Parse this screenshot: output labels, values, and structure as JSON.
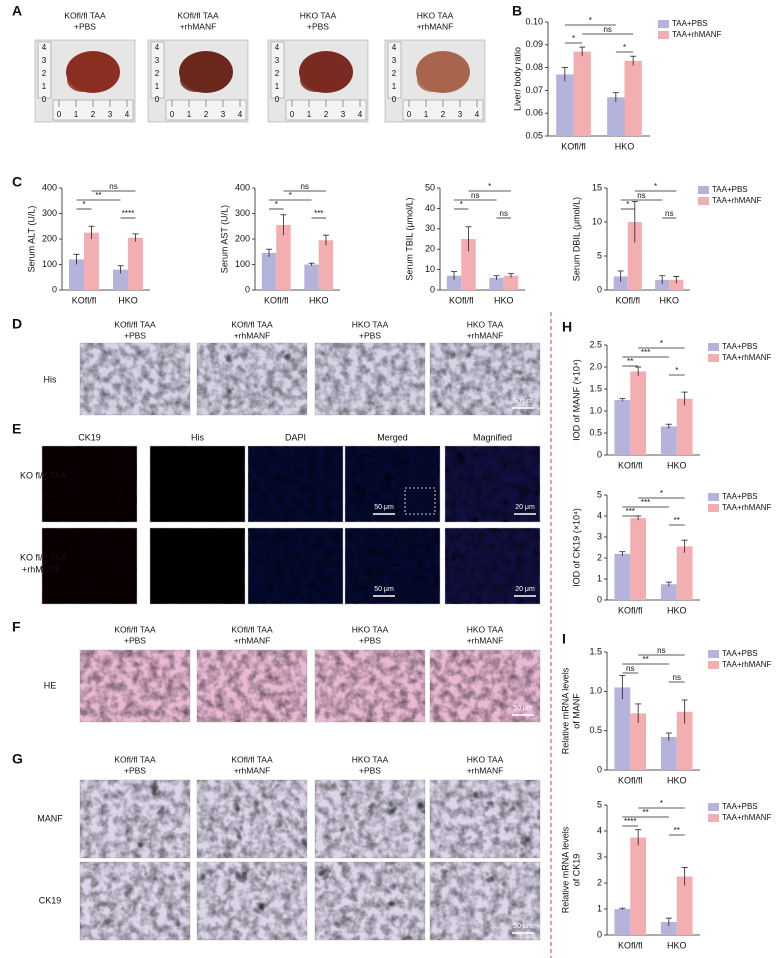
{
  "panel_letters": [
    "A",
    "B",
    "C",
    "D",
    "E",
    "F",
    "G",
    "H",
    "I"
  ],
  "group_headers": [
    {
      "line1": "KOfl/fl TAA",
      "line2": "+PBS"
    },
    {
      "line1": "KOfl/fl TAA",
      "line2": "+rhMANF"
    },
    {
      "line1": "HKO TAA",
      "line2": "+PBS"
    },
    {
      "line1": "HKO TAA",
      "line2": "+rhMANF"
    }
  ],
  "ruler_labels": [
    "0",
    "1",
    "2",
    "3",
    "4"
  ],
  "panel_d": {
    "row_label": "His",
    "scale_bar": "50 μm"
  },
  "panel_e": {
    "columns": [
      "CK19",
      "His",
      "DAPI",
      "Merged",
      "Magnified"
    ],
    "rows": [
      {
        "line1": "KO fl/fl TAA",
        "line2": ""
      },
      {
        "line1": "KO fl/fl TAA",
        "line2": "+rhMANF"
      }
    ],
    "scale_bars": [
      "50 μm",
      "20 μm"
    ]
  },
  "panel_f": {
    "row_label": "HE",
    "scale_bar": "50 μm"
  },
  "panel_g": {
    "rows": [
      "MANF",
      "CK19"
    ],
    "scale_bar": "50 μm"
  },
  "chart_data": [
    {
      "type": "bar",
      "y_label": [
        "Liver/ body ratio"
      ],
      "categories": [
        "KOfl/fl",
        "HKO"
      ],
      "series": [
        {
          "name": "TAA+PBS",
          "color": "#b4b3dc",
          "values": [
            0.077,
            0.067
          ],
          "errors": [
            0.003,
            0.002
          ]
        },
        {
          "name": "TAA+rhMANF",
          "color": "#f3aeb1",
          "values": [
            0.087,
            0.083
          ],
          "errors": [
            0.002,
            0.002
          ]
        }
      ],
      "ylim": [
        0.05,
        0.1
      ],
      "yticks": [
        0.05,
        0.06,
        0.07,
        0.08,
        0.09,
        {
          "value": 0.1,
          "label": "0.10"
        }
      ],
      "brackets": [
        {
          "label": "*",
          "from": 0,
          "to": 2
        },
        {
          "label": "ns",
          "from": 1,
          "to": 3
        },
        {
          "label": "*",
          "from": 0,
          "to": 1
        },
        {
          "label": "*",
          "from": 2,
          "to": 3
        }
      ],
      "legend": "right"
    },
    {
      "type": "bar",
      "y_label": [
        "Serum ALT (U/L)"
      ],
      "categories": [
        "KOfl/fl",
        "HKO"
      ],
      "series": [
        {
          "name": "TAA+PBS",
          "color": "#b4b3dc",
          "values": [
            120,
            80
          ],
          "errors": [
            20,
            15
          ]
        },
        {
          "name": "TAA+rhMANF",
          "color": "#f3aeb1",
          "values": [
            225,
            205
          ],
          "errors": [
            25,
            15
          ]
        }
      ],
      "ylim": [
        0,
        400
      ],
      "yticks": [
        0,
        100,
        200,
        300,
        400
      ],
      "brackets": [
        {
          "label": "ns",
          "from": 1,
          "to": 3
        },
        {
          "label": "**",
          "from": 0,
          "to": 2
        },
        {
          "label": "*",
          "from": 0,
          "to": 1
        },
        {
          "label": "****",
          "from": 2,
          "to": 3
        }
      ]
    },
    {
      "type": "bar",
      "y_label": [
        "Serum AST (U/L)"
      ],
      "categories": [
        "KOfl/fl",
        "HKO"
      ],
      "series": [
        {
          "name": "TAA+PBS",
          "color": "#b4b3dc",
          "values": [
            145,
            100
          ],
          "errors": [
            15,
            5
          ]
        },
        {
          "name": "TAA+rhMANF",
          "color": "#f3aeb1",
          "values": [
            255,
            195
          ],
          "errors": [
            40,
            20
          ]
        }
      ],
      "ylim": [
        0,
        400
      ],
      "yticks": [
        0,
        100,
        200,
        300,
        400
      ],
      "brackets": [
        {
          "label": "ns",
          "from": 1,
          "to": 3
        },
        {
          "label": "*",
          "from": 0,
          "to": 2
        },
        {
          "label": "*",
          "from": 0,
          "to": 1
        },
        {
          "label": "***",
          "from": 2,
          "to": 3
        }
      ]
    },
    {
      "type": "bar",
      "y_label": [
        "Serum TBIL (μmol/L)"
      ],
      "categories": [
        "KOfl/fl",
        "HKO"
      ],
      "series": [
        {
          "name": "TAA+PBS",
          "color": "#b4b3dc",
          "values": [
            7,
            6
          ],
          "errors": [
            2,
            1
          ]
        },
        {
          "name": "TAA+rhMANF",
          "color": "#f3aeb1",
          "values": [
            25,
            7
          ],
          "errors": [
            6,
            1
          ]
        }
      ],
      "ylim": [
        0,
        50
      ],
      "yticks": [
        0,
        10,
        20,
        30,
        40,
        50
      ],
      "brackets": [
        {
          "label": "*",
          "from": 1,
          "to": 3
        },
        {
          "label": "ns",
          "from": 0,
          "to": 2
        },
        {
          "label": "*",
          "from": 0,
          "to": 1
        },
        {
          "label": "ns",
          "from": 2,
          "to": 3
        }
      ]
    },
    {
      "type": "bar",
      "y_label": [
        "Serum DBIL (μmol/L)"
      ],
      "categories": [
        "KOfl/fl",
        "HKO"
      ],
      "series": [
        {
          "name": "TAA+PBS",
          "color": "#b4b3dc",
          "values": [
            2,
            1.5
          ],
          "errors": [
            0.8,
            0.6
          ]
        },
        {
          "name": "TAA+rhMANF",
          "color": "#f3aeb1",
          "values": [
            10,
            1.5
          ],
          "errors": [
            3,
            0.5
          ]
        }
      ],
      "ylim": [
        0,
        15
      ],
      "yticks": [
        0,
        5,
        10,
        15
      ],
      "brackets": [
        {
          "label": "*",
          "from": 1,
          "to": 3
        },
        {
          "label": "ns",
          "from": 0,
          "to": 2
        },
        {
          "label": "*",
          "from": 0,
          "to": 1
        },
        {
          "label": "ns",
          "from": 2,
          "to": 3
        }
      ],
      "legend": "right"
    },
    {
      "type": "bar",
      "y_label": [
        "IOD of MANF (×10⁴)"
      ],
      "categories": [
        "KOfl/fl",
        "HKO"
      ],
      "series": [
        {
          "name": "TAA+PBS",
          "color": "#b4b3dc",
          "values": [
            1.25,
            0.65
          ],
          "errors": [
            0.03,
            0.05
          ]
        },
        {
          "name": "TAA+rhMANF",
          "color": "#f3aeb1",
          "values": [
            1.9,
            1.28
          ],
          "errors": [
            0.1,
            0.15
          ]
        }
      ],
      "ylim": [
        0,
        2.5
      ],
      "yticks": [
        0,
        0.5,
        {
          "value": 1,
          "label": "1.0"
        },
        1.5,
        {
          "value": 2,
          "label": "2.0"
        },
        2.5
      ],
      "brackets": [
        {
          "label": "*",
          "from": 1,
          "to": 3
        },
        {
          "label": "***",
          "from": 0,
          "to": 2
        },
        {
          "label": "**",
          "from": 0,
          "to": 1
        },
        {
          "label": "*",
          "from": 2,
          "to": 3
        }
      ],
      "legend": "right"
    },
    {
      "type": "bar",
      "y_label": [
        "IOD of CK19 (×10⁴)"
      ],
      "categories": [
        "KOfl/fl",
        "HKO"
      ],
      "series": [
        {
          "name": "TAA+PBS",
          "color": "#b4b3dc",
          "values": [
            2.2,
            0.75
          ],
          "errors": [
            0.1,
            0.1
          ]
        },
        {
          "name": "TAA+rhMANF",
          "color": "#f3aeb1",
          "values": [
            3.9,
            2.55
          ],
          "errors": [
            0.1,
            0.3
          ]
        }
      ],
      "ylim": [
        0,
        5
      ],
      "yticks": [
        0,
        1,
        2,
        3,
        4,
        5
      ],
      "brackets": [
        {
          "label": "*",
          "from": 1,
          "to": 3
        },
        {
          "label": "***",
          "from": 0,
          "to": 2
        },
        {
          "label": "***",
          "from": 0,
          "to": 1
        },
        {
          "label": "**",
          "from": 2,
          "to": 3
        }
      ],
      "legend": "right"
    },
    {
      "type": "bar",
      "y_label": [
        "Relative mRNA levels",
        "of MANF"
      ],
      "categories": [
        "KOfl/fl",
        "HKO"
      ],
      "series": [
        {
          "name": "TAA+PBS",
          "color": "#b4b3dc",
          "values": [
            1.05,
            0.42
          ],
          "errors": [
            0.15,
            0.05
          ]
        },
        {
          "name": "TAA+rhMANF",
          "color": "#f3aeb1",
          "values": [
            0.72,
            0.74
          ],
          "errors": [
            0.12,
            0.15
          ]
        }
      ],
      "ylim": [
        0,
        1.5
      ],
      "yticks": [
        0,
        0.5,
        {
          "value": 1,
          "label": "1.0"
        },
        1.5
      ],
      "brackets": [
        {
          "label": "ns",
          "from": 1,
          "to": 3
        },
        {
          "label": "**",
          "from": 0,
          "to": 2
        },
        {
          "label": "ns",
          "from": 0,
          "to": 1
        },
        {
          "label": "ns",
          "from": 2,
          "to": 3
        }
      ],
      "legend": "right"
    },
    {
      "type": "bar",
      "y_label": [
        "Relative mRNA levels",
        "of CK19"
      ],
      "categories": [
        "KOfl/fl",
        "HKO"
      ],
      "series": [
        {
          "name": "TAA+PBS",
          "color": "#b4b3dc",
          "values": [
            1.0,
            0.5
          ],
          "errors": [
            0.03,
            0.15
          ]
        },
        {
          "name": "TAA+rhMANF",
          "color": "#f3aeb1",
          "values": [
            3.75,
            2.25
          ],
          "errors": [
            0.3,
            0.35
          ]
        }
      ],
      "ylim": [
        0,
        5
      ],
      "yticks": [
        0,
        1,
        2,
        3,
        4,
        5
      ],
      "brackets": [
        {
          "label": "*",
          "from": 1,
          "to": 3
        },
        {
          "label": "**",
          "from": 0,
          "to": 2
        },
        {
          "label": "****",
          "from": 0,
          "to": 1
        },
        {
          "label": "**",
          "from": 2,
          "to": 3
        }
      ],
      "legend": "right"
    }
  ]
}
